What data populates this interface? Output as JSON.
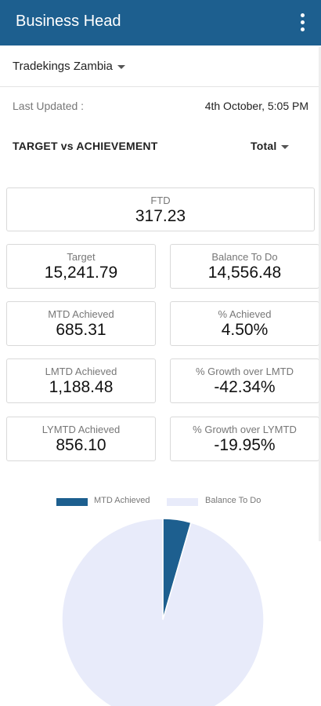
{
  "appbar": {
    "title": "Business Head",
    "menu_icon": "more-vertical-icon"
  },
  "company": {
    "selected": "Tradekings Zambia"
  },
  "updated": {
    "label": "Last Updated :",
    "value": "4th October, 5:05 PM"
  },
  "section": {
    "title": "TARGET vs ACHIEVEMENT",
    "filter": "Total"
  },
  "metrics": {
    "ftd": {
      "label": "FTD",
      "value": "317.23"
    },
    "target": {
      "label": "Target",
      "value": "15,241.79"
    },
    "balance": {
      "label": "Balance To Do",
      "value": "14,556.48"
    },
    "mtd": {
      "label": "MTD Achieved",
      "value": "685.31"
    },
    "pct": {
      "label": "% Achieved",
      "value": "4.50%"
    },
    "lmtd": {
      "label": "LMTD Achieved",
      "value": "1,188.48"
    },
    "growth_lmtd": {
      "label": "% Growth over LMTD",
      "value": "-42.34%"
    },
    "lymtd": {
      "label": "LYMTD Achieved",
      "value": "856.10"
    },
    "growth_lymtd": {
      "label": "% Growth over LYMTD",
      "value": "-19.95%"
    }
  },
  "colors": {
    "primary": "#1d5f8f",
    "mtd": "#1d5f8f",
    "balance": "#e8ebfa"
  },
  "chart_data": {
    "type": "pie",
    "legend_position": "top",
    "slices": [
      {
        "name": "MTD Achieved",
        "value": 685.31,
        "color": "#1d5f8f"
      },
      {
        "name": "Balance To Do",
        "value": 14556.48,
        "color": "#e8ebfa"
      }
    ]
  }
}
